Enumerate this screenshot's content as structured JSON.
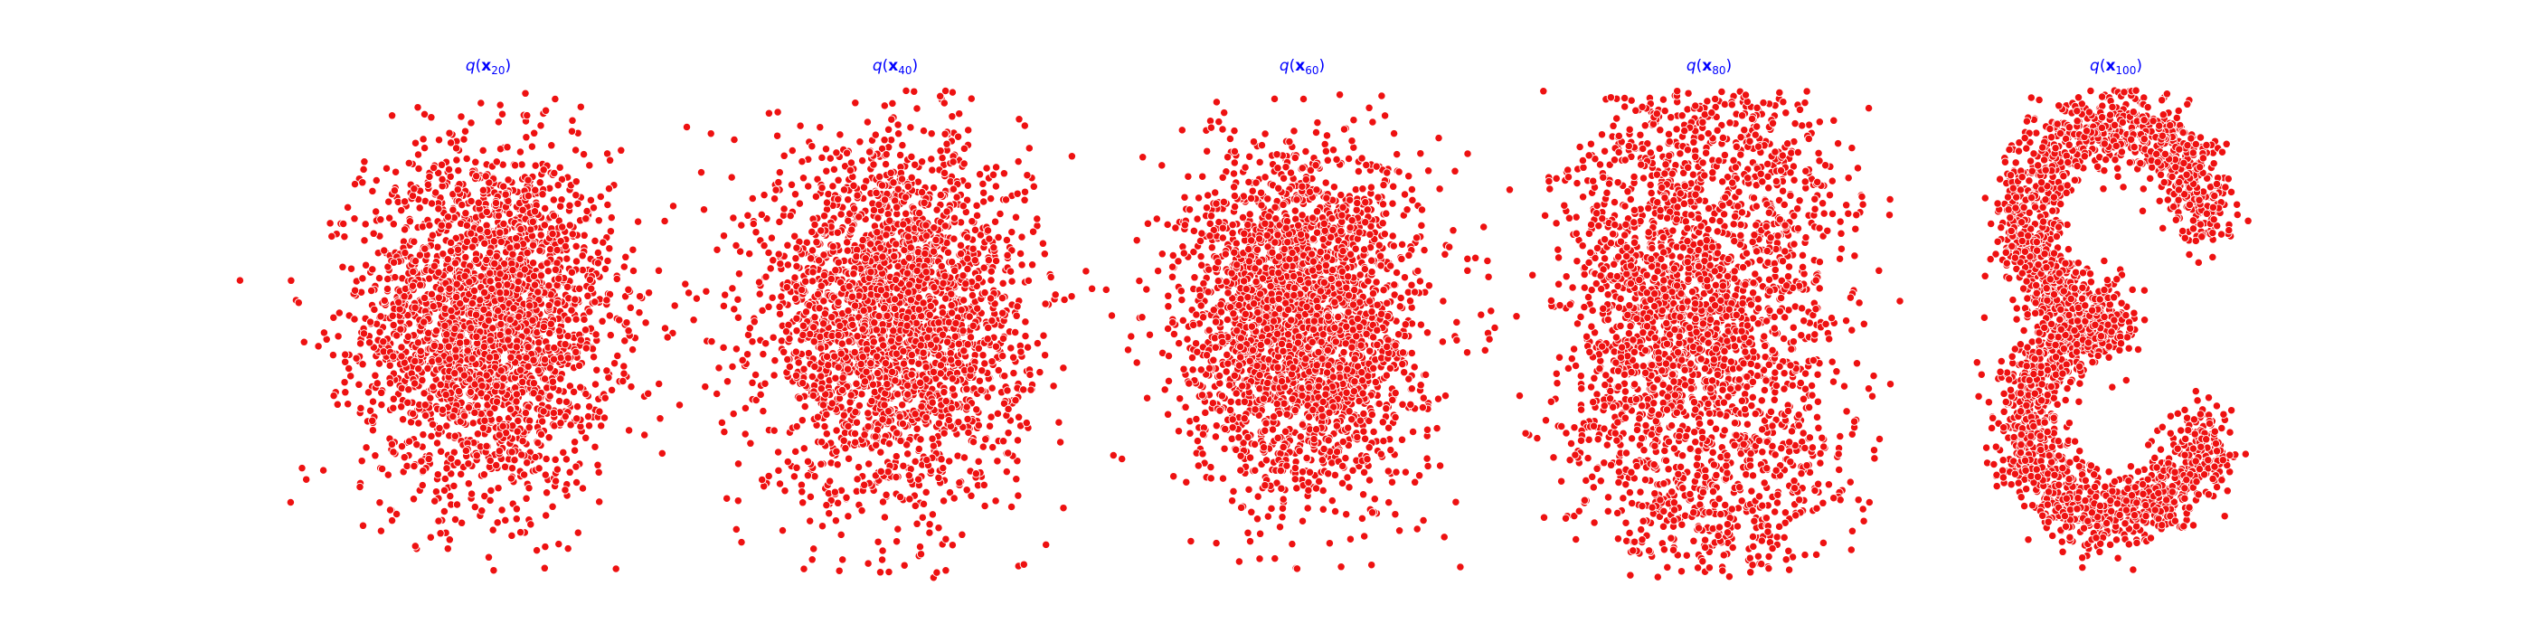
{
  "chart_data": [
    {
      "type": "scatter",
      "title": {
        "prefix": "q(",
        "var": "x",
        "sub": "20",
        "suffix": ")"
      },
      "axis": "off",
      "grid": false,
      "marker_color": "#ee1111",
      "marker_edge": "#ffffff",
      "distribution": {
        "shape": "gaussian",
        "center": [
          0,
          0
        ],
        "spread": [
          1.0,
          1.15
        ]
      },
      "xlim": [
        -4,
        4
      ],
      "ylim": [
        -4,
        4
      ]
    },
    {
      "type": "scatter",
      "title": {
        "prefix": "q(",
        "var": "x",
        "sub": "40",
        "suffix": ")"
      },
      "axis": "off",
      "grid": false,
      "marker_color": "#ee1111",
      "marker_edge": "#ffffff",
      "distribution": {
        "shape": "gaussian",
        "center": [
          0,
          0
        ],
        "spread": [
          1.05,
          1.2
        ]
      },
      "xlim": [
        -4,
        4
      ],
      "ylim": [
        -4,
        4
      ]
    },
    {
      "type": "scatter",
      "title": {
        "prefix": "q(",
        "var": "x",
        "sub": "60",
        "suffix": ")"
      },
      "axis": "off",
      "grid": false,
      "marker_color": "#ee1111",
      "marker_edge": "#ffffff",
      "distribution": {
        "shape": "gaussian",
        "center": [
          0,
          0
        ],
        "spread": [
          0.95,
          1.15
        ]
      },
      "xlim": [
        -4,
        4
      ],
      "ylim": [
        -4,
        4
      ]
    },
    {
      "type": "scatter",
      "title": {
        "prefix": "q(",
        "var": "x",
        "sub": "80",
        "suffix": ")"
      },
      "axis": "off",
      "grid": false,
      "marker_color": "#ee1111",
      "marker_edge": "#ffffff",
      "distribution": {
        "shape": "blob-s",
        "center": [
          0,
          0
        ],
        "spread": [
          1.0,
          1.15
        ]
      },
      "xlim": [
        -4,
        4
      ],
      "ylim": [
        -4,
        4
      ]
    },
    {
      "type": "scatter",
      "title": {
        "prefix": "q(",
        "var": "x",
        "sub": "100",
        "suffix": ")"
      },
      "axis": "off",
      "grid": false,
      "marker_color": "#ee1111",
      "marker_edge": "#ffffff",
      "distribution": {
        "shape": "s-curve",
        "center": [
          0,
          0
        ],
        "spread": [
          1.0,
          1.0
        ]
      },
      "xlim": [
        -4,
        4
      ],
      "ylim": [
        -4,
        4
      ]
    }
  ]
}
